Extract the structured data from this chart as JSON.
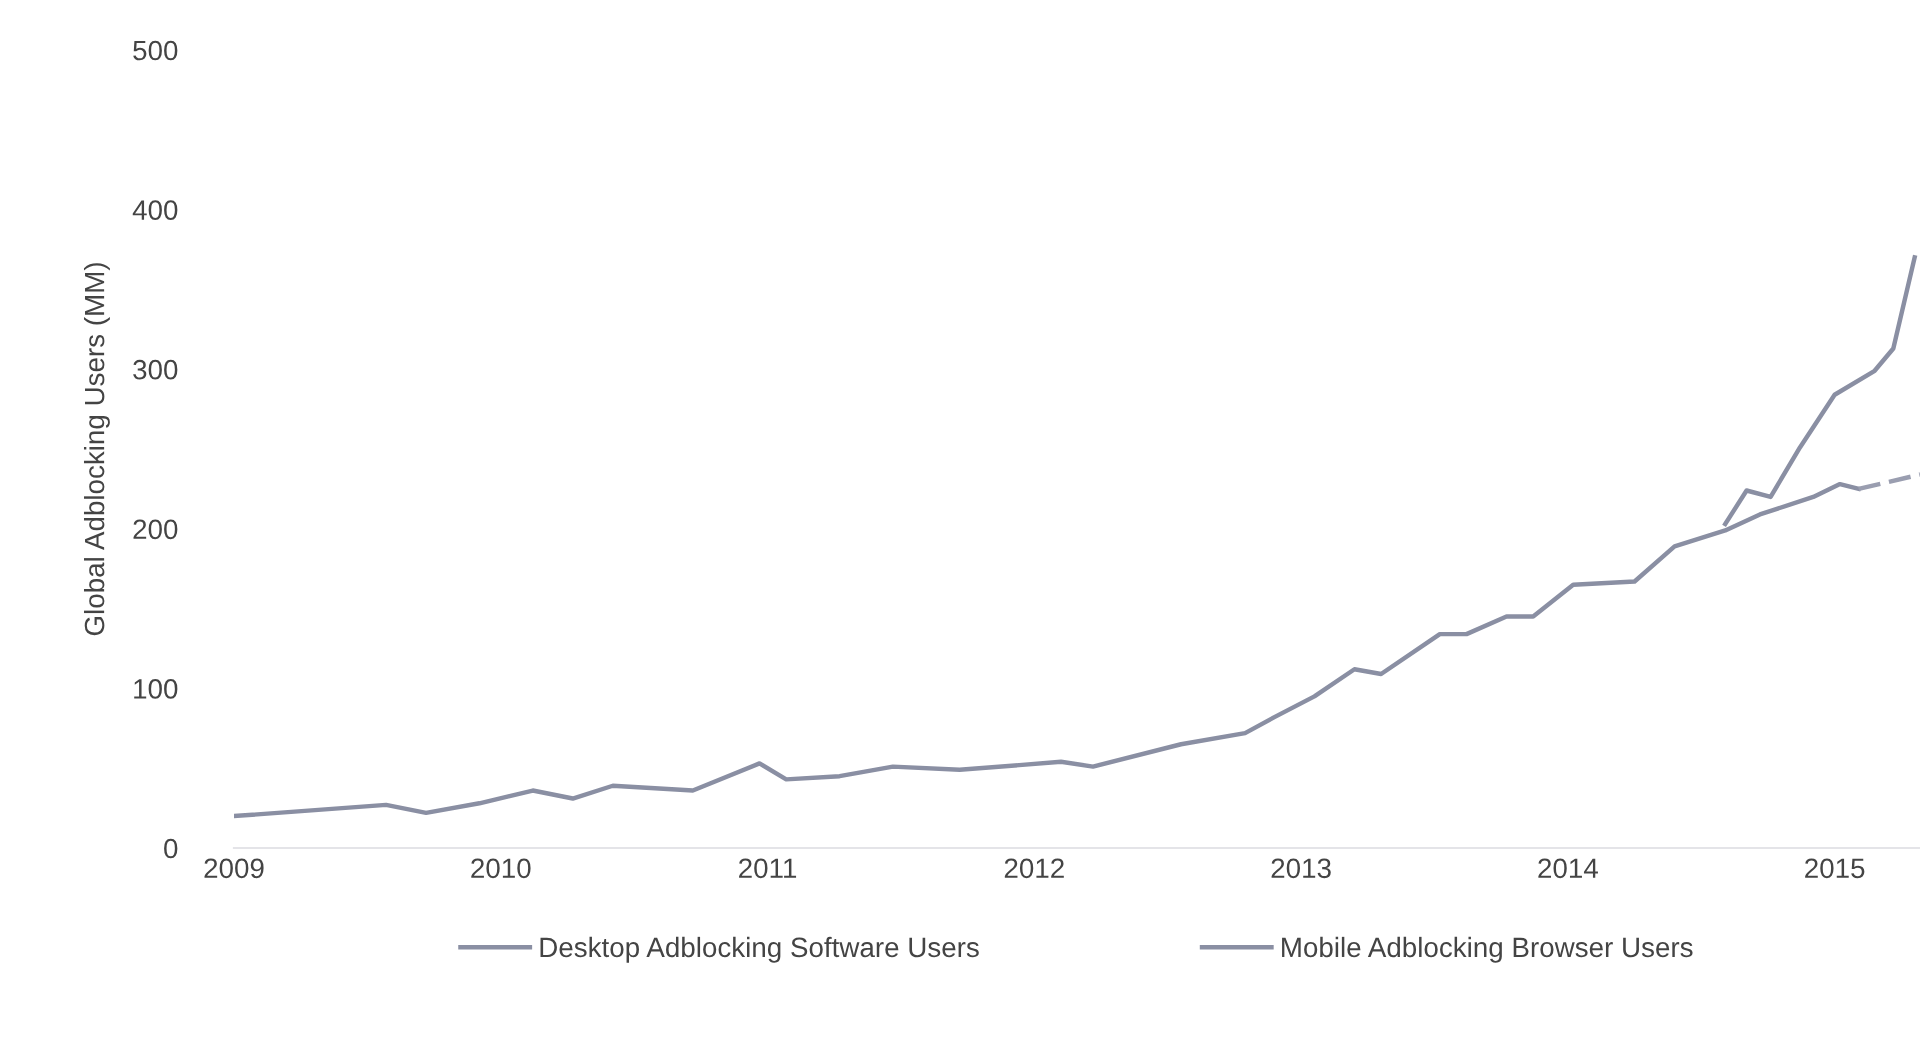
{
  "chart_data": {
    "type": "line",
    "ylabel": "Global Adblocking Users (MM)",
    "xlim": [
      2009,
      2015.32
    ],
    "xticks": [
      2009,
      2010,
      2011,
      2012,
      2013,
      2014,
      2015
    ],
    "ylim": [
      0,
      500
    ],
    "yticks": [
      0,
      100,
      200,
      300,
      400,
      500
    ],
    "grid": false,
    "legend": "bottom",
    "marker": "none",
    "series": [
      {
        "name": "Desktop Adblocking Software Users",
        "color": "#8a8fa3",
        "line_style": "solid",
        "x": [
          2009.0,
          2009.57,
          2009.72,
          2009.92,
          2010.12,
          2010.27,
          2010.42,
          2010.72,
          2010.97,
          2011.07,
          2011.27,
          2011.47,
          2011.72,
          2012.1,
          2012.22,
          2012.55,
          2012.79,
          2012.9,
          2013.05,
          2013.2,
          2013.3,
          2013.52,
          2013.62,
          2013.77,
          2013.87,
          2014.02,
          2014.25,
          2014.4,
          2014.59,
          2014.72,
          2014.92,
          2015.02,
          2015.09
        ],
        "values": [
          20,
          27,
          22,
          28,
          36,
          31,
          39,
          36,
          53,
          43,
          45,
          51,
          49,
          54,
          51,
          65,
          72,
          82,
          95,
          112,
          109,
          134,
          134,
          145,
          145,
          165,
          167,
          189,
          199,
          209,
          220,
          228,
          225
        ]
      },
      {
        "name": "Mobile Adblocking Browser Users",
        "color": "#8a8fa3",
        "line_style": "solid",
        "x": [
          2014.59,
          2014.67,
          2014.76,
          2014.87,
          2015.0,
          2015.15,
          2015.22,
          2015.3
        ],
        "values": [
          203,
          224,
          220,
          251,
          284,
          299,
          313,
          370
        ]
      },
      {
        "color": "#9a9eb0",
        "line_style": "dashed",
        "x": [
          2015.09,
          2015.32
        ],
        "values": [
          225,
          234
        ]
      }
    ]
  }
}
